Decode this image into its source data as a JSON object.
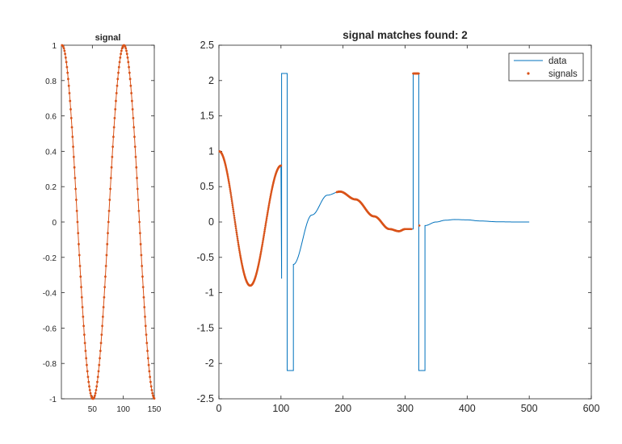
{
  "chart_data": [
    {
      "type": "line",
      "title": "signal",
      "xlabel": "",
      "ylabel": "",
      "xlim": [
        0,
        150
      ],
      "ylim": [
        -1,
        1
      ],
      "xticks": [
        "50",
        "100",
        "150"
      ],
      "yticks": [
        "-1",
        "-0.8",
        "-0.6",
        "-0.4",
        "-0.2",
        "0",
        "0.2",
        "0.4",
        "0.6",
        "0.8",
        "1"
      ],
      "grid": false,
      "series": [
        {
          "name": "",
          "marker": "dot-line",
          "color": "#D95319",
          "formula": "cos(2*pi*(x-1)/100)",
          "x_range": [
            1,
            150
          ]
        }
      ]
    },
    {
      "type": "line",
      "title": "signal matches found: 2",
      "xlabel": "",
      "ylabel": "",
      "xlim": [
        0,
        600
      ],
      "ylim": [
        -2.5,
        2.5
      ],
      "xticks": [
        "0",
        "100",
        "200",
        "300",
        "400",
        "500",
        "600"
      ],
      "yticks": [
        "-2.5",
        "-2",
        "-1.5",
        "-1",
        "-0.5",
        "0",
        "0.5",
        "1",
        "1.5",
        "2",
        "2.5"
      ],
      "grid": false,
      "legend": {
        "position": "top-right",
        "entries": [
          "data",
          "signals"
        ]
      },
      "series": [
        {
          "name": "data",
          "color": "#0072BD",
          "segments": [
            {
              "x_range": [
                1,
                100
              ],
              "formula": "cos(2*pi*(x-1)/100)"
            },
            {
              "points": [
                [
                  100,
                  -0.8
                ],
                [
                  101,
                  -0.8
                ],
                [
                  101,
                  2.1
                ],
                [
                  110,
                  2.1
                ],
                [
                  110,
                  -2.1
                ],
                [
                  120,
                  -2.1
                ],
                [
                  120,
                  -0.6
                ]
              ]
            },
            {
              "x_range": [
                120,
                300
              ],
              "formula": "decaying cosine, peak ~0.43 at x~195, ends ~-0.1 at 300"
            },
            {
              "points": [
                [
                  300,
                  -0.1
                ],
                [
                  313,
                  -0.1
                ],
                [
                  313,
                  2.1
                ],
                [
                  322,
                  2.1
                ],
                [
                  322,
                  -2.1
                ],
                [
                  332,
                  -2.1
                ],
                [
                  332,
                  -0.05
                ]
              ]
            },
            {
              "x_range": [
                332,
                500
              ],
              "formula": "decaying oscillation, peak ~0.03 at x~380, ~0 at 500"
            }
          ]
        },
        {
          "name": "signals",
          "marker": "dots",
          "color": "#D95319",
          "ranges": [
            [
              1,
              100
            ],
            [
              190,
              310
            ],
            [
              313,
              322
            ]
          ]
        }
      ]
    }
  ]
}
